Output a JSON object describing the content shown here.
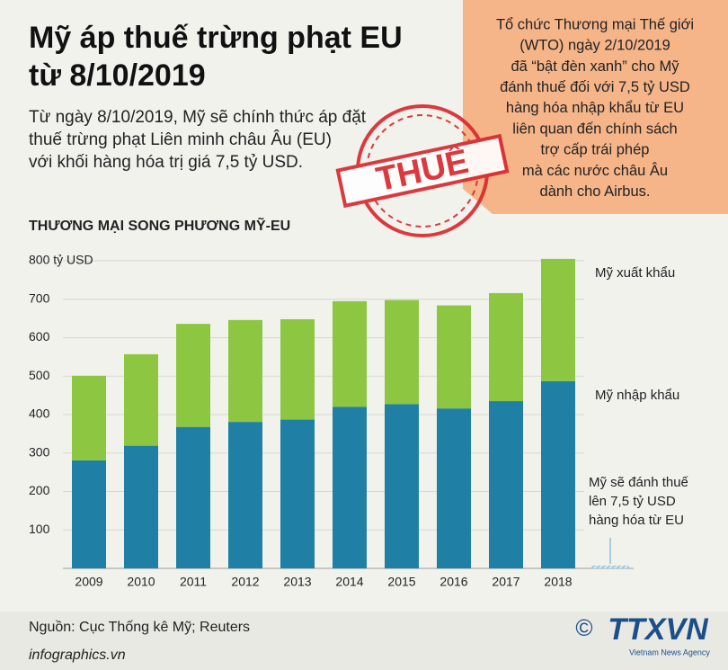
{
  "header": {
    "title_lines": [
      "Mỹ áp thuế trừng phạt EU",
      "từ 8/10/2019"
    ],
    "intro_lines": [
      "Từ ngày 8/10/2019, Mỹ sẽ chính thức áp đặt",
      "thuế trừng phạt Liên minh châu Âu (EU)",
      "với khối hàng hóa trị giá 7,5 tỷ USD."
    ]
  },
  "callout": {
    "lines": [
      "Tổ chức Thương mại Thế giới",
      "(WTO) ngày 2/10/2019",
      "đã “bật đèn xanh” cho Mỹ",
      "đánh thuế đối với 7,5 tỷ USD",
      "hàng hóa nhập khẩu từ EU",
      "liên quan đến chính sách",
      "trợ cấp trái phép",
      "mà các nước châu Âu",
      "dành cho Airbus."
    ]
  },
  "stamp": "THUẾ",
  "chart_data": {
    "type": "bar",
    "stacked": true,
    "title": "THƯƠNG MẠI SONG PHƯƠNG MỸ-EU",
    "categories": [
      "2009",
      "2010",
      "2011",
      "2012",
      "2013",
      "2014",
      "2015",
      "2016",
      "2017",
      "2018"
    ],
    "series": [
      {
        "name": "Mỹ nhập khẩu",
        "color": "#1f7fa4",
        "values": [
          281,
          319,
          368,
          381,
          387,
          420,
          427,
          416,
          435,
          487
        ]
      },
      {
        "name": "Mỹ xuất khẩu",
        "color": "#8dc641",
        "values": [
          220,
          238,
          268,
          265,
          261,
          275,
          271,
          268,
          281,
          318
        ]
      }
    ],
    "ylim": [
      0,
      800
    ],
    "yticks": [
      100,
      200,
      300,
      400,
      500,
      600,
      700,
      {
        "value": 800,
        "label": "800 tỷ USD"
      }
    ],
    "grid": true,
    "annotation": {
      "lines": [
        "Mỹ sẽ đánh thuế",
        "lên 7,5 tỷ USD",
        "hàng hóa từ EU"
      ],
      "value": 7.5,
      "color": "#9ccde3"
    }
  },
  "footer": {
    "source": "Nguồn: Cục Thống kê Mỹ; Reuters",
    "site": "infographics.vn",
    "copyright": "©",
    "logo": "TTXVN",
    "agency": "Vietnam News Agency"
  }
}
